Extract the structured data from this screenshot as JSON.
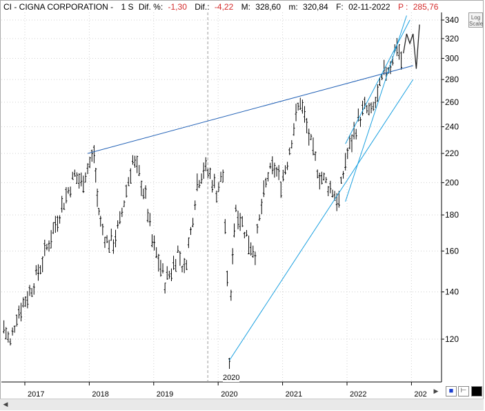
{
  "header": {
    "ticker": "CI - CIGNA CORPORATION -",
    "period": "1 S",
    "dif_pct_label": "Dif. %:",
    "dif_pct_value": "-1,30",
    "dif_label": "Dif.:",
    "dif_value": "-4,22",
    "max_label": "M:",
    "max_value": "328,60",
    "min_label": "m:",
    "min_value": "320,84",
    "date_label": "F:",
    "date_value": "02-11-2022",
    "price_label": "P :",
    "price_value": "285,76"
  },
  "scale_badge": {
    "line1": "Log",
    "line2": "Scale"
  },
  "toolbar": {
    "save_icon": "save-icon",
    "pin_icon": "pin-icon",
    "color_icon": "color-swatch-icon"
  },
  "crosshair_label": "2020",
  "colors": {
    "trendline": "#1f5fb5",
    "channel": "#1aa0e0",
    "bars": "#000000",
    "negative": "#d42a2a"
  },
  "chart_data": {
    "type": "bar",
    "scale": "log",
    "ylim": [
      100,
      350
    ],
    "y_ticks": [
      120,
      140,
      160,
      180,
      200,
      220,
      240,
      260,
      280,
      300,
      320,
      340
    ],
    "x_ticks": [
      "2017",
      "2018",
      "2019",
      "2020",
      "2021",
      "2022",
      "202"
    ],
    "series": [
      {
        "x": [
          2016.6,
          2016.7,
          2016.8,
          2016.9,
          2017.0,
          2017.1,
          2017.2,
          2017.3,
          2017.4,
          2017.5,
          2017.6,
          2017.7,
          2017.8,
          2017.9,
          2018.0,
          2018.05,
          2018.1,
          2018.2,
          2018.3,
          2018.4,
          2018.5,
          2018.6,
          2018.7,
          2018.8,
          2018.9,
          2019.0,
          2019.1,
          2019.2,
          2019.3,
          2019.4,
          2019.5,
          2019.6,
          2019.7,
          2019.8,
          2019.9,
          2020.0,
          2020.1,
          2020.15,
          2020.2,
          2020.3,
          2020.4,
          2020.5,
          2020.6,
          2020.7,
          2020.8,
          2020.9,
          2021.0,
          2021.1,
          2021.2,
          2021.3,
          2021.4,
          2021.5,
          2021.6,
          2021.7,
          2021.8,
          2021.9,
          2022.0,
          2022.1,
          2022.2,
          2022.3,
          2022.4,
          2022.5,
          2022.6,
          2022.7,
          2022.8
        ],
        "values": [
          125,
          118,
          130,
          135,
          140,
          147,
          155,
          165,
          175,
          185,
          195,
          205,
          200,
          210,
          220,
          190,
          175,
          165,
          165,
          175,
          195,
          215,
          205,
          190,
          165,
          155,
          145,
          150,
          160,
          150,
          170,
          200,
          210,
          205,
          195,
          205,
          112,
          160,
          185,
          175,
          165,
          160,
          185,
          205,
          210,
          200,
          215,
          240,
          262,
          240,
          220,
          205,
          200,
          195,
          188,
          215,
          230,
          245,
          255,
          250,
          265,
          285,
          295,
          315,
          290
        ]
      }
    ],
    "trendlines": [
      {
        "x": [
          2017.9,
          2022.95
        ],
        "y": [
          220,
          293
        ]
      },
      {
        "x": [
          2020.1,
          2022.95
        ],
        "y": [
          112,
          280
        ]
      },
      {
        "x": [
          2021.9,
          2022.85
        ],
        "y": [
          188,
          345
        ]
      },
      {
        "x": [
          2021.9,
          2022.9
        ],
        "y": [
          227,
          340
        ]
      }
    ],
    "projection": {
      "x": [
        2022.8,
        2022.85,
        2022.9,
        2022.95,
        2023.0,
        2023.05
      ],
      "y": [
        305,
        325,
        315,
        325,
        290,
        335
      ]
    }
  }
}
